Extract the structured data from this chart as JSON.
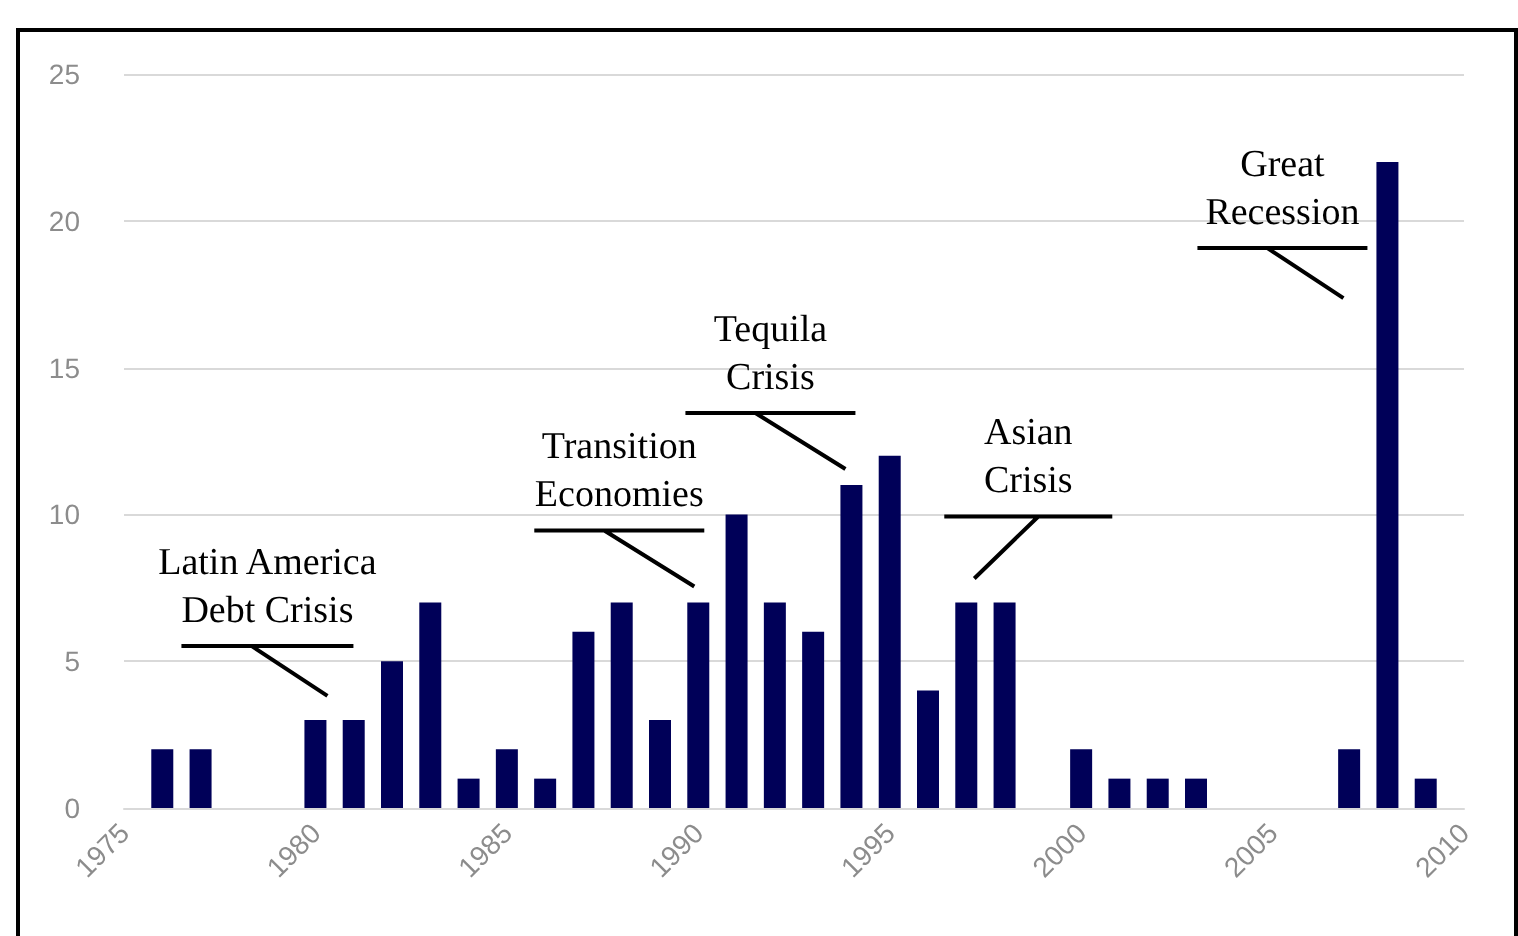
{
  "chart_data": {
    "type": "bar",
    "x": [
      1976,
      1977,
      1980,
      1981,
      1982,
      1983,
      1984,
      1985,
      1986,
      1987,
      1988,
      1989,
      1990,
      1991,
      1992,
      1993,
      1994,
      1995,
      1996,
      1997,
      1998,
      2000,
      2001,
      2002,
      2003,
      2007,
      2008,
      2009
    ],
    "values": [
      2,
      2,
      3,
      3,
      5,
      7,
      1,
      2,
      1,
      6,
      7,
      3,
      7,
      10,
      7,
      6,
      11,
      12,
      4,
      7,
      7,
      2,
      1,
      1,
      1,
      2,
      22,
      1
    ],
    "color": "#000058",
    "xlim": [
      1975,
      2010
    ],
    "xticks": [
      1975,
      1980,
      1985,
      1990,
      1995,
      2000,
      2005,
      2010
    ],
    "ylim": [
      0,
      25
    ],
    "yticks": [
      0,
      5,
      10,
      15,
      20,
      25
    ],
    "grid": "y",
    "annotations": [
      {
        "text": "Latin America\nDebt Crisis",
        "x": 1980,
        "y": 3
      },
      {
        "text": "Transition\nEconomies",
        "x": 1990,
        "y": 7
      },
      {
        "text": "Tequila\nCrisis",
        "x": 1994,
        "y": 11
      },
      {
        "text": "Asian\nCrisis",
        "x": 1997,
        "y": 7
      },
      {
        "text": "Great\nRecession",
        "x": 2008,
        "y": 22
      }
    ]
  }
}
